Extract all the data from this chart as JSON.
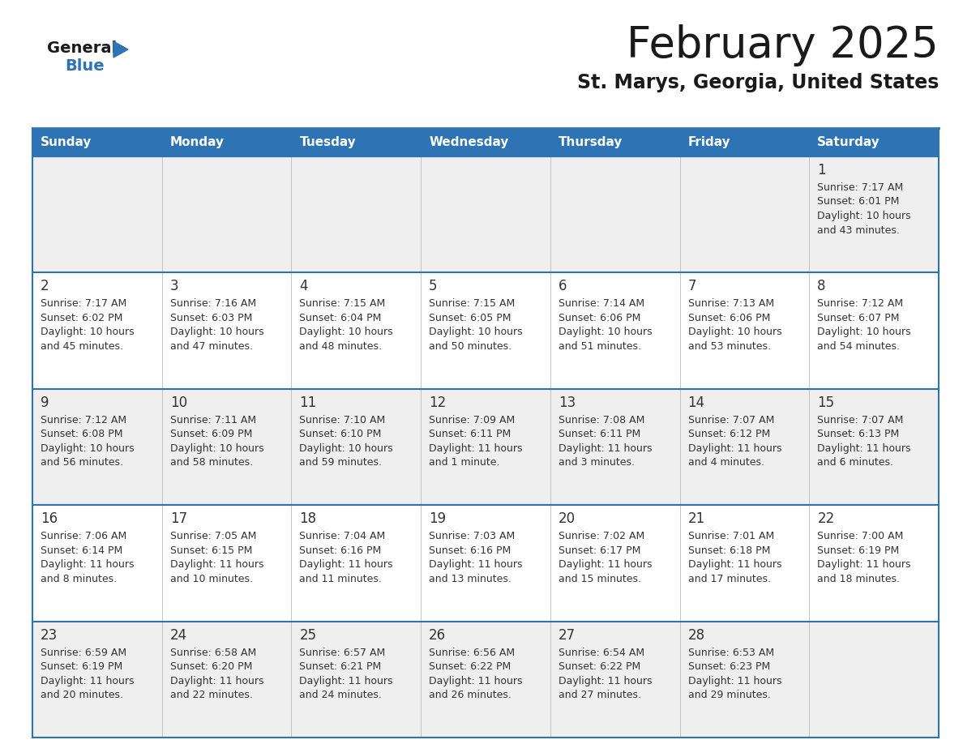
{
  "title": "February 2025",
  "subtitle": "St. Marys, Georgia, United States",
  "header_bg": "#2E74B5",
  "header_text_color": "#FFFFFF",
  "day_names": [
    "Sunday",
    "Monday",
    "Tuesday",
    "Wednesday",
    "Thursday",
    "Friday",
    "Saturday"
  ],
  "row_bg_colors": [
    "#EFEFEF",
    "#FFFFFF",
    "#EFEFEF",
    "#FFFFFF",
    "#EFEFEF"
  ],
  "cell_text_color": "#333333",
  "day_num_color": "#333333",
  "border_color": "#2E74B5",
  "logo_general_color": "#1A1A1A",
  "logo_blue_color": "#2E74B5",
  "calendar": [
    [
      null,
      null,
      null,
      null,
      null,
      null,
      {
        "day": 1,
        "sunrise": "7:17 AM",
        "sunset": "6:01 PM",
        "daylight": "10 hours\nand 43 minutes."
      }
    ],
    [
      {
        "day": 2,
        "sunrise": "7:17 AM",
        "sunset": "6:02 PM",
        "daylight": "10 hours\nand 45 minutes."
      },
      {
        "day": 3,
        "sunrise": "7:16 AM",
        "sunset": "6:03 PM",
        "daylight": "10 hours\nand 47 minutes."
      },
      {
        "day": 4,
        "sunrise": "7:15 AM",
        "sunset": "6:04 PM",
        "daylight": "10 hours\nand 48 minutes."
      },
      {
        "day": 5,
        "sunrise": "7:15 AM",
        "sunset": "6:05 PM",
        "daylight": "10 hours\nand 50 minutes."
      },
      {
        "day": 6,
        "sunrise": "7:14 AM",
        "sunset": "6:06 PM",
        "daylight": "10 hours\nand 51 minutes."
      },
      {
        "day": 7,
        "sunrise": "7:13 AM",
        "sunset": "6:06 PM",
        "daylight": "10 hours\nand 53 minutes."
      },
      {
        "day": 8,
        "sunrise": "7:12 AM",
        "sunset": "6:07 PM",
        "daylight": "10 hours\nand 54 minutes."
      }
    ],
    [
      {
        "day": 9,
        "sunrise": "7:12 AM",
        "sunset": "6:08 PM",
        "daylight": "10 hours\nand 56 minutes."
      },
      {
        "day": 10,
        "sunrise": "7:11 AM",
        "sunset": "6:09 PM",
        "daylight": "10 hours\nand 58 minutes."
      },
      {
        "day": 11,
        "sunrise": "7:10 AM",
        "sunset": "6:10 PM",
        "daylight": "10 hours\nand 59 minutes."
      },
      {
        "day": 12,
        "sunrise": "7:09 AM",
        "sunset": "6:11 PM",
        "daylight": "11 hours\nand 1 minute."
      },
      {
        "day": 13,
        "sunrise": "7:08 AM",
        "sunset": "6:11 PM",
        "daylight": "11 hours\nand 3 minutes."
      },
      {
        "day": 14,
        "sunrise": "7:07 AM",
        "sunset": "6:12 PM",
        "daylight": "11 hours\nand 4 minutes."
      },
      {
        "day": 15,
        "sunrise": "7:07 AM",
        "sunset": "6:13 PM",
        "daylight": "11 hours\nand 6 minutes."
      }
    ],
    [
      {
        "day": 16,
        "sunrise": "7:06 AM",
        "sunset": "6:14 PM",
        "daylight": "11 hours\nand 8 minutes."
      },
      {
        "day": 17,
        "sunrise": "7:05 AM",
        "sunset": "6:15 PM",
        "daylight": "11 hours\nand 10 minutes."
      },
      {
        "day": 18,
        "sunrise": "7:04 AM",
        "sunset": "6:16 PM",
        "daylight": "11 hours\nand 11 minutes."
      },
      {
        "day": 19,
        "sunrise": "7:03 AM",
        "sunset": "6:16 PM",
        "daylight": "11 hours\nand 13 minutes."
      },
      {
        "day": 20,
        "sunrise": "7:02 AM",
        "sunset": "6:17 PM",
        "daylight": "11 hours\nand 15 minutes."
      },
      {
        "day": 21,
        "sunrise": "7:01 AM",
        "sunset": "6:18 PM",
        "daylight": "11 hours\nand 17 minutes."
      },
      {
        "day": 22,
        "sunrise": "7:00 AM",
        "sunset": "6:19 PM",
        "daylight": "11 hours\nand 18 minutes."
      }
    ],
    [
      {
        "day": 23,
        "sunrise": "6:59 AM",
        "sunset": "6:19 PM",
        "daylight": "11 hours\nand 20 minutes."
      },
      {
        "day": 24,
        "sunrise": "6:58 AM",
        "sunset": "6:20 PM",
        "daylight": "11 hours\nand 22 minutes."
      },
      {
        "day": 25,
        "sunrise": "6:57 AM",
        "sunset": "6:21 PM",
        "daylight": "11 hours\nand 24 minutes."
      },
      {
        "day": 26,
        "sunrise": "6:56 AM",
        "sunset": "6:22 PM",
        "daylight": "11 hours\nand 26 minutes."
      },
      {
        "day": 27,
        "sunrise": "6:54 AM",
        "sunset": "6:22 PM",
        "daylight": "11 hours\nand 27 minutes."
      },
      {
        "day": 28,
        "sunrise": "6:53 AM",
        "sunset": "6:23 PM",
        "daylight": "11 hours\nand 29 minutes."
      },
      null
    ]
  ]
}
